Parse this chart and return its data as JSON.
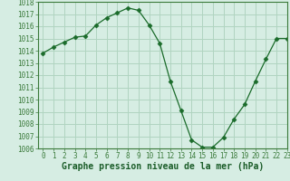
{
  "x": [
    0,
    1,
    2,
    3,
    4,
    5,
    6,
    7,
    8,
    9,
    10,
    11,
    12,
    13,
    14,
    15,
    16,
    17,
    18,
    19,
    20,
    21,
    22,
    23
  ],
  "y": [
    1013.8,
    1014.3,
    1014.7,
    1015.1,
    1015.2,
    1016.1,
    1016.7,
    1017.1,
    1017.5,
    1017.3,
    1016.1,
    1014.6,
    1011.5,
    1009.1,
    1006.7,
    1006.1,
    1006.1,
    1006.9,
    1008.4,
    1009.6,
    1011.5,
    1013.3,
    1015.0,
    1015.0
  ],
  "line_color": "#1a6b2a",
  "marker": "D",
  "marker_size": 2.5,
  "bg_color": "#d6ede3",
  "grid_color": "#b0d4c0",
  "xlabel": "Graphe pression niveau de la mer (hPa)",
  "ylim": [
    1006,
    1018
  ],
  "xlim": [
    -0.5,
    23
  ],
  "yticks": [
    1006,
    1007,
    1008,
    1009,
    1010,
    1011,
    1012,
    1013,
    1014,
    1015,
    1016,
    1017,
    1018
  ],
  "xticks": [
    0,
    1,
    2,
    3,
    4,
    5,
    6,
    7,
    8,
    9,
    10,
    11,
    12,
    13,
    14,
    15,
    16,
    17,
    18,
    19,
    20,
    21,
    22,
    23
  ],
  "tick_fontsize": 5.5,
  "xlabel_fontsize": 7,
  "xlabel_color": "#1a5c28",
  "spine_color": "#3a7a3a"
}
